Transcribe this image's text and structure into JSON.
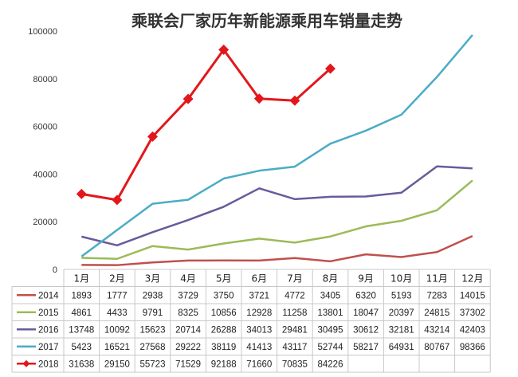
{
  "chart_data": {
    "type": "line",
    "title": "乘联会厂家历年新能源乘用车销量走势",
    "categories": [
      "1月",
      "2月",
      "3月",
      "4月",
      "5月",
      "6月",
      "7月",
      "8月",
      "9月",
      "10月",
      "11月",
      "12月"
    ],
    "ylim": [
      0,
      100000
    ],
    "yticks": [
      "0",
      "20000",
      "40000",
      "60000",
      "80000",
      "100000"
    ],
    "grid": false,
    "legend": "data-table-bottom",
    "series": [
      {
        "name": "2014",
        "color": "#c0504d",
        "marker": "none",
        "values": [
          1893,
          1777,
          2938,
          3729,
          3750,
          3721,
          4772,
          3405,
          6320,
          5193,
          7283,
          14015
        ]
      },
      {
        "name": "2015",
        "color": "#9bbb59",
        "marker": "none",
        "values": [
          4861,
          4433,
          9791,
          8325,
          10856,
          12928,
          11258,
          13801,
          18047,
          20397,
          24815,
          37302
        ]
      },
      {
        "name": "2016",
        "color": "#6a5a9c",
        "marker": "none",
        "values": [
          13748,
          10092,
          15623,
          20714,
          26288,
          34013,
          29481,
          30495,
          30612,
          32181,
          43214,
          42403
        ]
      },
      {
        "name": "2017",
        "color": "#4bacc6",
        "marker": "none",
        "values": [
          5423,
          16521,
          27568,
          29222,
          38119,
          41413,
          43117,
          52744,
          58217,
          64931,
          80767,
          98366
        ]
      },
      {
        "name": "2018",
        "color": "#e3171b",
        "marker": "diamond",
        "values": [
          31638,
          29150,
          55723,
          71529,
          92188,
          71660,
          70835,
          84226,
          null,
          null,
          null,
          null
        ]
      }
    ]
  }
}
